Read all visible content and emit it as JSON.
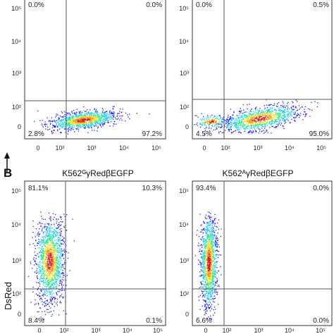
{
  "panel_letter": "B",
  "y_axis_label": "DsRed",
  "colors": {
    "density": [
      "#1a1aff",
      "#1ec8ff",
      "#2ee88a",
      "#f0e22a",
      "#ff8c1a",
      "#d02020"
    ],
    "frame": "#333333",
    "gate": "#555555"
  },
  "chart_data": [
    {
      "type": "scatter",
      "subtype": "flow-cytometry-density",
      "title": "",
      "x_scale": "biexponential",
      "y_scale": "biexponential",
      "xticks": [
        "0",
        "10²",
        "10³",
        "10⁴",
        "10⁵"
      ],
      "yticks": [
        "0",
        "10²",
        "10³",
        "10⁴",
        "10⁵"
      ],
      "gate": {
        "x": 100,
        "y": 200
      },
      "quadrants": {
        "top_left": "0.0%",
        "top_right": "0.0%",
        "bottom_left": "2.8%",
        "bottom_right": "97.2%"
      }
    },
    {
      "type": "scatter",
      "subtype": "flow-cytometry-density",
      "title": "",
      "x_scale": "biexponential",
      "y_scale": "biexponential",
      "xticks": [
        "0",
        "10²",
        "10³",
        "10⁴",
        "10⁵"
      ],
      "yticks": [
        "0",
        "10²",
        "10³",
        "10⁴",
        "10⁵"
      ],
      "gate": {
        "x": 100,
        "y": 200
      },
      "quadrants": {
        "top_left": "0.0%",
        "top_right": "0.5%",
        "bottom_left": "4.5%",
        "bottom_right": "95.0%"
      }
    },
    {
      "type": "scatter",
      "subtype": "flow-cytometry-density",
      "title": "K562ᴳγRedβEGFP",
      "x_scale": "biexponential",
      "y_scale": "biexponential",
      "xticks": [
        "0",
        "10²",
        "10³",
        "10⁴",
        "10⁵"
      ],
      "yticks": [
        "0",
        "10²",
        "10³",
        "10⁴",
        "10⁵"
      ],
      "gate": {
        "x": 100,
        "y": 150
      },
      "quadrants": {
        "top_left": "81.1%",
        "top_right": "10.3%",
        "bottom_left": "8.4%",
        "bottom_right": "0.1%"
      }
    },
    {
      "type": "scatter",
      "subtype": "flow-cytometry-density",
      "title": "K562ᴬγRedβEGFP",
      "x_scale": "biexponential",
      "y_scale": "biexponential",
      "xticks": [
        "0",
        "10²",
        "10³",
        "10⁴",
        "10⁵"
      ],
      "yticks": [
        "0",
        "10²",
        "10³",
        "10⁴",
        "10⁵"
      ],
      "gate": {
        "x": 100,
        "y": 150
      },
      "quadrants": {
        "top_left": "93.4%",
        "top_right": "0.0%",
        "bottom_left": "6.6%",
        "bottom_right": "0.0%"
      }
    }
  ]
}
